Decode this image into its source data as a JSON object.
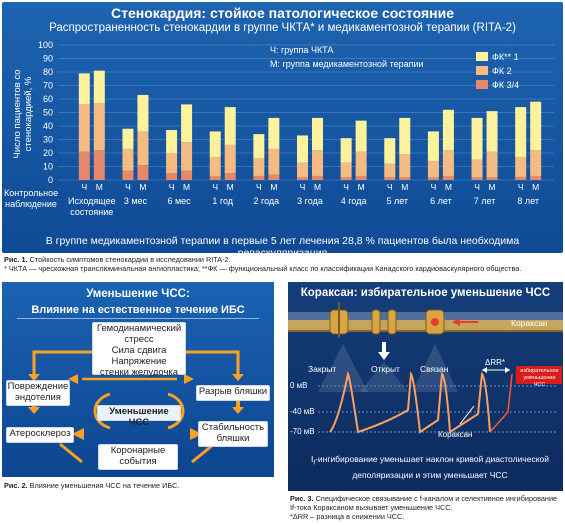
{
  "panel1": {
    "title": "Стенокардия: стойкое патологическое состояние",
    "subtitle": "Распространенность стенокардии в группе ЧКТА* и медикаментозной терапии (RITA-2)",
    "groups_legend": [
      "Ч: группа ЧКТА",
      "М: группа медикаментозной терапии"
    ],
    "footnote": "В группе медикаментозной терапии в первые 5 лет лечения 28,8 % пациентов была необходима реваскуляризация",
    "control_label": [
      "Контрольное",
      "наблюдение"
    ]
  },
  "chart_data": {
    "type": "bar",
    "stacked": true,
    "ylabel": "Число пациентов со стенокардией, %",
    "ylim": [
      0,
      100
    ],
    "yticks": [
      0,
      10,
      20,
      30,
      40,
      50,
      60,
      70,
      80,
      90,
      100
    ],
    "groups": [
      "Исходящее состояние",
      "3 мес",
      "6 мес",
      "1 год",
      "2 года",
      "3 года",
      "4 года",
      "5 лет",
      "6 лет",
      "7 лет",
      "8 лет"
    ],
    "bar_labels": [
      "Ч",
      "М"
    ],
    "legend_position": "top-right",
    "series": [
      {
        "name": "ФК 3/4",
        "color": "#e6896b",
        "values": [
          [
            21,
            22
          ],
          [
            7,
            11
          ],
          [
            5,
            7
          ],
          [
            3,
            5
          ],
          [
            3,
            4
          ],
          [
            2,
            3
          ],
          [
            2,
            3
          ],
          [
            2,
            2
          ],
          [
            2,
            3
          ],
          [
            2,
            2
          ],
          [
            2,
            3
          ]
        ]
      },
      {
        "name": "ФК 2",
        "color": "#f6bb82",
        "values": [
          [
            35,
            35
          ],
          [
            16,
            25
          ],
          [
            15,
            21
          ],
          [
            14,
            21
          ],
          [
            13,
            19
          ],
          [
            11,
            19
          ],
          [
            11,
            18
          ],
          [
            10,
            17
          ],
          [
            12,
            19
          ],
          [
            13,
            19
          ],
          [
            15,
            19
          ]
        ]
      },
      {
        "name": "ФК** 1",
        "color": "#fbf29b",
        "values": [
          [
            23,
            24
          ],
          [
            15,
            27
          ],
          [
            17,
            28
          ],
          [
            19,
            28
          ],
          [
            18,
            23
          ],
          [
            20,
            24
          ],
          [
            18,
            23
          ],
          [
            19,
            27
          ],
          [
            22,
            30
          ],
          [
            31,
            30
          ],
          [
            37,
            36
          ]
        ]
      }
    ],
    "totals": [
      [
        79,
        81
      ],
      [
        38,
        63
      ],
      [
        37,
        56
      ],
      [
        36,
        54
      ],
      [
        34,
        46
      ],
      [
        33,
        46
      ],
      [
        31,
        44
      ],
      [
        31,
        46
      ],
      [
        36,
        52
      ],
      [
        46,
        51
      ],
      [
        54,
        58
      ]
    ]
  },
  "caption1": {
    "label": "Рис. 1.",
    "text": "Стойкость симптомов стенокардии в исследовании RITA-2.",
    "note": "* ЧКТА — чрескожная транслюминальная ангиопластика; **ФК — функциональный класс по классификации Канадского кардиоваскулярного общества."
  },
  "panel2": {
    "title": "Уменьшение ЧСС:",
    "subtitle": "Влияние на естественное течение ИБС",
    "top_box": [
      "Гемодинамический",
      "стресс",
      "Сила сдвига",
      "Напряжение",
      "стенки желудочка"
    ],
    "left1": [
      "Повреждение",
      "эндотелия"
    ],
    "right1": "Разрыв бляшки",
    "center": "Уменьшение ЧСС",
    "left2": "Атеросклероз",
    "right2": [
      "Стабильность",
      "бляшки"
    ],
    "bottom": [
      "Коронарные",
      "события"
    ]
  },
  "caption2": {
    "label": "Рис. 2.",
    "text": "Влияние уменьшения ЧСС на течение ИБС."
  },
  "panel3": {
    "title": "Кораксан: избирательное уменьшение ЧСС",
    "drug": "Кораксан",
    "states": [
      "Закрыт",
      "Открыт",
      "Связан"
    ],
    "delta_label": "ΔRR*",
    "red_label": [
      "избирательное",
      "уменьшение ЧСС"
    ],
    "yticks": [
      "0 мВ",
      "-40 мВ",
      "-70 мВ"
    ],
    "bottom_drug": "Кораксан",
    "bottom_text": [
      "I",
      "-ингибирование уменьшает наклон кривой диастолической",
      "деполяризации и этим уменьшает ЧСС"
    ],
    "colors": {
      "curve": "#ffa060",
      "red_box": "#d91c1c"
    }
  },
  "caption3": {
    "label": "Рис. 3.",
    "text": "Специфическое связывание с f-каналом и селективное ингибирование If-тока Кораксаном вызывает уменьшение ЧСС.",
    "note": "*ΔRR – разница в снижении ЧСС."
  }
}
